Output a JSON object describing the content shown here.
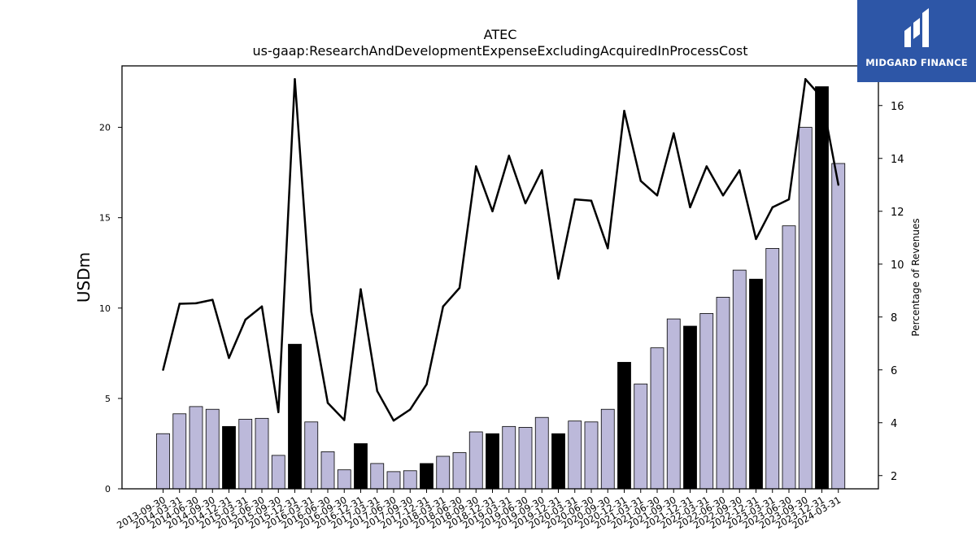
{
  "title": "ATEC",
  "subtitle": "us-gaap:ResearchAndDevelopmentExpenseExcludingAcquiredInProcessCost",
  "logo": {
    "text": "MIDGARD FINANCE"
  },
  "colors": {
    "bar_quarter": "#bcb9da",
    "bar_annual": "#000000",
    "line": "#000000",
    "logo_bg": "#2d56a7"
  },
  "chart_data": {
    "type": "bar",
    "title": "ATEC",
    "subtitle": "us-gaap:ResearchAndDevelopmentExpenseExcludingAcquiredInProcessCost",
    "ylabel": "USDm",
    "y2label": "Percentage of Revenues",
    "ylim": [
      0,
      23.4
    ],
    "y2lim": [
      1.5,
      17.5
    ],
    "yticks": [
      0,
      5,
      10,
      15,
      20
    ],
    "y2ticks": [
      2,
      4,
      6,
      8,
      10,
      12,
      14,
      16
    ],
    "categories": [
      "2013-09-30",
      "2014-03-31",
      "2014-06-30",
      "2014-09-30",
      "2014-12-31",
      "2015-03-31",
      "2015-06-30",
      "2015-09-30",
      "2015-12-31",
      "2016-03-31",
      "2016-06-30",
      "2016-09-30",
      "2016-12-31",
      "2017-03-31",
      "2017-06-30",
      "2017-09-30",
      "2017-12-31",
      "2018-03-31",
      "2018-06-30",
      "2018-09-30",
      "2018-12-31",
      "2019-03-31",
      "2019-06-30",
      "2019-09-30",
      "2019-12-31",
      "2020-03-31",
      "2020-06-30",
      "2020-09-30",
      "2020-12-31",
      "2021-03-31",
      "2021-06-30",
      "2021-09-30",
      "2021-12-31",
      "2022-03-31",
      "2022-06-30",
      "2022-09-30",
      "2022-12-31",
      "2023-03-31",
      "2023-06-30",
      "2023-09-30",
      "2023-12-31",
      "2024-03-31"
    ],
    "series": [
      {
        "kind": "bar",
        "values": [
          3.05,
          4.15,
          4.55,
          4.4,
          3.45,
          3.85,
          3.9,
          1.85,
          8.0,
          3.7,
          2.05,
          1.05,
          2.5,
          1.4,
          0.95,
          1.0,
          1.4,
          1.8,
          2.0,
          3.15,
          3.05,
          3.45,
          3.4,
          3.95,
          3.05,
          3.75,
          3.7,
          4.4,
          7.0,
          5.8,
          7.8,
          9.4,
          9.0,
          9.7,
          10.6,
          12.1,
          11.6,
          13.3,
          14.55,
          20.0,
          22.25,
          18.0
        ],
        "annual": [
          false,
          false,
          false,
          false,
          true,
          false,
          false,
          false,
          true,
          false,
          false,
          false,
          true,
          false,
          false,
          false,
          true,
          false,
          false,
          false,
          true,
          false,
          false,
          false,
          true,
          false,
          false,
          false,
          true,
          false,
          false,
          false,
          true,
          false,
          false,
          false,
          true,
          false,
          false,
          false,
          true,
          false
        ]
      },
      {
        "kind": "line",
        "axis": "right",
        "values": [
          6.0,
          8.5,
          8.52,
          8.65,
          6.45,
          7.9,
          8.4,
          4.4,
          17.0,
          8.2,
          4.75,
          4.1,
          9.05,
          5.2,
          4.08,
          4.5,
          5.45,
          8.4,
          9.1,
          13.7,
          12.0,
          14.1,
          12.3,
          13.55,
          9.45,
          12.45,
          12.4,
          10.6,
          15.8,
          13.15,
          12.6,
          14.95,
          12.15,
          13.7,
          12.6,
          13.55,
          10.95,
          12.15,
          12.45,
          17.0,
          16.3,
          13.0
        ]
      }
    ]
  }
}
